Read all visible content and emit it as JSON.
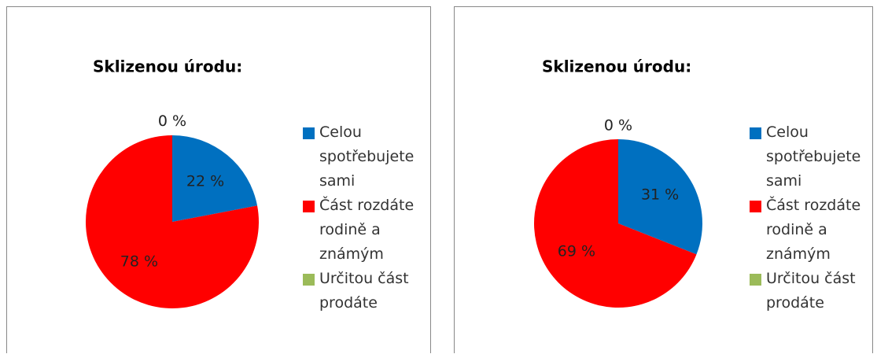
{
  "chart_data": [
    {
      "type": "pie",
      "title": "Sklizenou úrodu:",
      "categories": [
        "Celou spotřebujete sami",
        "Část rozdáte rodině a známým",
        "Určitou část prodáte"
      ],
      "values": [
        22,
        78,
        0
      ],
      "value_labels": [
        "22 %",
        "78 %",
        "0 %"
      ],
      "colors": [
        "#0070c0",
        "#ff0000",
        "#9bbb59"
      ]
    },
    {
      "type": "pie",
      "title": "Sklizenou úrodu:",
      "categories": [
        "Celou spotřebujete sami",
        "Část rozdáte rodině a známým",
        "Určitou část prodáte"
      ],
      "values": [
        31,
        69,
        0
      ],
      "value_labels": [
        "31 %",
        "69 %",
        "0 %"
      ],
      "colors": [
        "#0070c0",
        "#ff0000",
        "#9bbb59"
      ]
    }
  ]
}
